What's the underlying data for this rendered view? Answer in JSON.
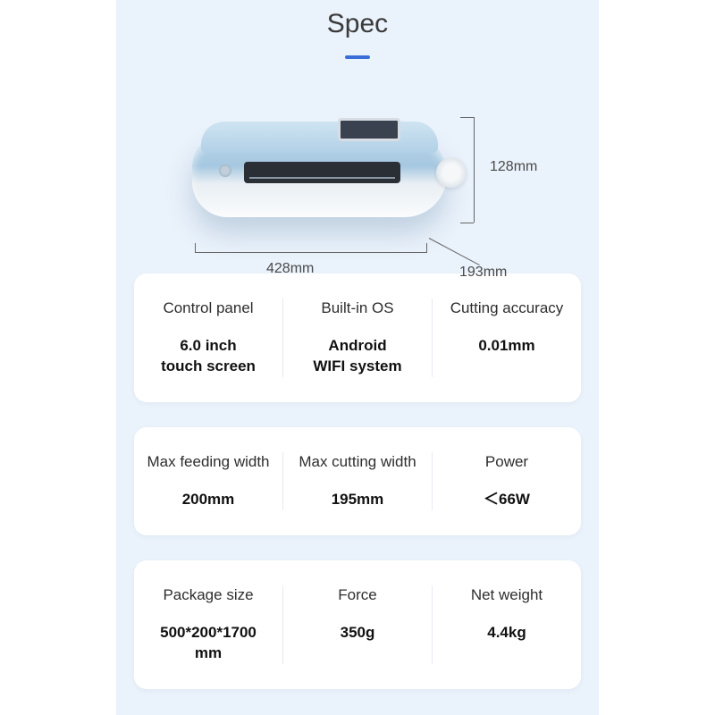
{
  "title": "Spec",
  "dimensions": {
    "height": "128mm",
    "width": "428mm",
    "depth": "193mm"
  },
  "rows": [
    [
      {
        "label": "Control panel",
        "value": "6.0 inch\ntouch screen"
      },
      {
        "label": "Built-in OS",
        "value": "Android\nWIFI system"
      },
      {
        "label": "Cutting accuracy",
        "value": "0.01mm"
      }
    ],
    [
      {
        "label": "Max feeding width",
        "value": "200mm"
      },
      {
        "label": "Max cutting width",
        "value": "195mm"
      },
      {
        "label": "Power",
        "value": "＜66W"
      }
    ],
    [
      {
        "label": "Package size",
        "value": "500*200*1700\nmm"
      },
      {
        "label": "Force",
        "value": "350g"
      },
      {
        "label": "Net weight",
        "value": "4.4kg"
      }
    ]
  ],
  "colors": {
    "page_bg": "#eaf2fb",
    "accent": "#3a6fd8",
    "text": "#2e2e2e",
    "value_text": "#111111",
    "divider": "#e6ecf3",
    "card_bg": "#ffffff"
  }
}
